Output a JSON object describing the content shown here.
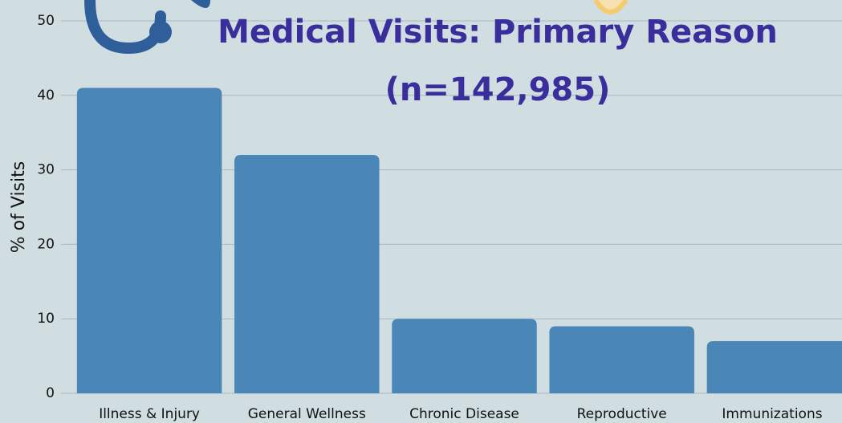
{
  "chart_data": {
    "type": "bar",
    "title": "Medical Visits: Primary Reason (n=142,985)",
    "ylabel": "% of Visits",
    "categories": [
      "Illness & Injury",
      "General Wellness",
      "Chronic Disease",
      "Reproductive",
      "Immunizations"
    ],
    "values": [
      41,
      32,
      10,
      9,
      7
    ],
    "color": "#4a86b8",
    "ylim": [
      0,
      50
    ],
    "yticks": [
      0,
      10,
      20,
      30,
      40,
      50
    ],
    "grid": true
  }
}
